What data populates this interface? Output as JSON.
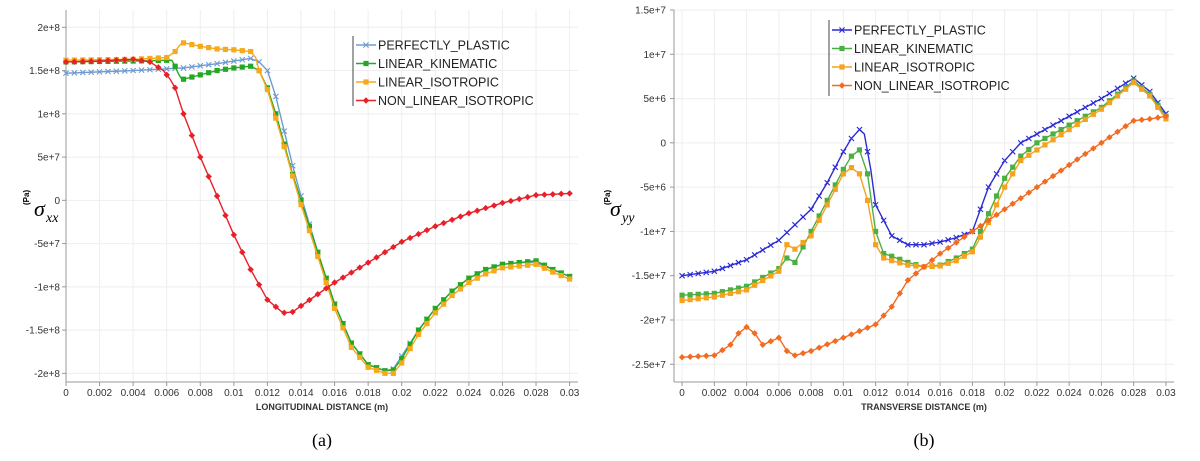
{
  "chart_data": [
    {
      "type": "line",
      "caption": "(a)",
      "ylabel_symbol": "σ",
      "ylabel_subscript": "xx",
      "ylabel_unit": "(Pa)",
      "xlabel": "LONGITUDINAL DISTANCE (m)",
      "xlim": [
        0,
        0.0305
      ],
      "ylim": [
        -210000000,
        220000000
      ],
      "xticks": [
        0,
        0.002,
        0.004,
        0.006,
        0.008,
        0.01,
        0.012,
        0.014,
        0.016,
        0.018,
        0.02,
        0.022,
        0.024,
        0.026,
        0.028,
        0.03
      ],
      "xtick_labels": [
        "0",
        "0.002",
        "0.004",
        "0.006",
        "0.008",
        "0.01",
        "0.012",
        "0.014",
        "0.016",
        "0.018",
        "0.02",
        "0.022",
        "0.024",
        "0.026",
        "0.028",
        "0.03"
      ],
      "yticks": [
        -200000000,
        -150000000,
        -100000000,
        -50000000,
        0,
        50000000,
        100000000,
        150000000,
        200000000
      ],
      "ytick_labels": [
        "-2e+8",
        "-1.5e+8",
        "-1e+8",
        "-5e+7",
        "0",
        "5e+7",
        "1e+8",
        "1.5e+8",
        "2e+8"
      ],
      "grid": true,
      "legend_position": "top-right",
      "series": [
        {
          "name": "PERFECTLY_PLASTIC",
          "color": "#6e9bd2",
          "marker": "x",
          "x": [
            0,
            0.004,
            0.007,
            0.009,
            0.011,
            0.0115,
            0.012,
            0.0125,
            0.013,
            0.0135,
            0.014,
            0.015,
            0.016,
            0.017,
            0.018,
            0.019,
            0.0195,
            0.02,
            0.021,
            0.022,
            0.023,
            0.024,
            0.025,
            0.026,
            0.027,
            0.028,
            0.029,
            0.03
          ],
          "y": [
            147000000,
            150000000,
            153000000,
            158000000,
            164000000,
            160000000,
            150000000,
            120000000,
            80000000,
            40000000,
            5000000,
            -60000000,
            -120000000,
            -165000000,
            -190000000,
            -197000000,
            -195000000,
            -180000000,
            -150000000,
            -125000000,
            -105000000,
            -90000000,
            -80000000,
            -74000000,
            -72000000,
            -72000000,
            -80000000,
            -88000000
          ]
        },
        {
          "name": "LINEAR_KINEMATIC",
          "color": "#22a822",
          "marker": "square",
          "x": [
            0,
            0.004,
            0.0063,
            0.0065,
            0.0067,
            0.0069,
            0.007,
            0.008,
            0.009,
            0.01,
            0.011,
            0.0115,
            0.012,
            0.0125,
            0.013,
            0.0135,
            0.014,
            0.015,
            0.016,
            0.017,
            0.018,
            0.019,
            0.0195,
            0.02,
            0.021,
            0.022,
            0.023,
            0.024,
            0.025,
            0.026,
            0.027,
            0.028,
            0.029,
            0.03
          ],
          "y": [
            160000000,
            161000000,
            162000000,
            155000000,
            146000000,
            140000000,
            140000000,
            145000000,
            150000000,
            153000000,
            155000000,
            150000000,
            130000000,
            100000000,
            65000000,
            30000000,
            0,
            -60000000,
            -120000000,
            -165000000,
            -190000000,
            -197000000,
            -196000000,
            -183000000,
            -150000000,
            -125000000,
            -105000000,
            -90000000,
            -80000000,
            -74000000,
            -72000000,
            -70000000,
            -80000000,
            -88000000
          ]
        },
        {
          "name": "LINEAR_ISOTROPIC",
          "color": "#f6a91a",
          "marker": "square",
          "x": [
            0,
            0.004,
            0.006,
            0.0065,
            0.0068,
            0.007,
            0.008,
            0.009,
            0.01,
            0.011,
            0.0113,
            0.0115,
            0.012,
            0.0125,
            0.013,
            0.0135,
            0.014,
            0.015,
            0.016,
            0.017,
            0.018,
            0.019,
            0.0195,
            0.02,
            0.021,
            0.022,
            0.023,
            0.024,
            0.025,
            0.026,
            0.027,
            0.028,
            0.029,
            0.03
          ],
          "y": [
            162000000,
            163000000,
            165000000,
            172000000,
            180000000,
            182000000,
            178000000,
            175000000,
            174000000,
            172000000,
            165000000,
            150000000,
            128000000,
            95000000,
            62000000,
            28000000,
            -5000000,
            -65000000,
            -125000000,
            -170000000,
            -193000000,
            -200000000,
            -200000000,
            -188000000,
            -155000000,
            -130000000,
            -110000000,
            -95000000,
            -85000000,
            -78000000,
            -76000000,
            -74000000,
            -83000000,
            -91000000
          ]
        },
        {
          "name": "NON_LINEAR_ISOTROPIC",
          "color": "#e8202a",
          "marker": "diamond",
          "x": [
            0,
            0.002,
            0.004,
            0.005,
            0.0058,
            0.0062,
            0.0065,
            0.007,
            0.008,
            0.009,
            0.01,
            0.011,
            0.012,
            0.0128,
            0.013,
            0.0135,
            0.014,
            0.016,
            0.018,
            0.02,
            0.022,
            0.024,
            0.026,
            0.028,
            0.029,
            0.03
          ],
          "y": [
            160000000,
            161000000,
            163000000,
            160000000,
            150000000,
            140000000,
            130000000,
            100000000,
            50000000,
            5000000,
            -40000000,
            -80000000,
            -115000000,
            -128000000,
            -130000000,
            -129000000,
            -122000000,
            -95000000,
            -72000000,
            -48000000,
            -30000000,
            -15000000,
            -3000000,
            6000000,
            7000000,
            8000000
          ]
        }
      ]
    },
    {
      "type": "line",
      "caption": "(b)",
      "ylabel_symbol": "σ",
      "ylabel_subscript": "yy",
      "ylabel_unit": "(Pa)",
      "xlabel": "TRANSVERSE DISTANCE (m)",
      "xlim": [
        -0.0005,
        0.0305
      ],
      "ylim": [
        -27000000,
        15000000
      ],
      "xticks": [
        0,
        0.002,
        0.004,
        0.006,
        0.008,
        0.01,
        0.012,
        0.014,
        0.016,
        0.018,
        0.02,
        0.022,
        0.024,
        0.026,
        0.028,
        0.03
      ],
      "xtick_labels": [
        "0",
        "0.002",
        "0.004",
        "0.006",
        "0.008",
        "0.01",
        "0.012",
        "0.014",
        "0.016",
        "0.018",
        "0.02",
        "0.022",
        "0.024",
        "0.026",
        "0.028",
        "0.03"
      ],
      "yticks": [
        -25000000,
        -20000000,
        -15000000,
        -10000000,
        -5000000,
        0,
        5000000,
        10000000,
        15000000
      ],
      "ytick_labels": [
        "-2.5e+7",
        "-2e+7",
        "-1.5e+7",
        "-1e+7",
        "-5e+6",
        "0",
        "5e+6",
        "1e+7",
        "1.5e+7"
      ],
      "grid": true,
      "legend_position": "top-left",
      "series": [
        {
          "name": "PERFECTLY_PLASTIC",
          "color": "#2a2ad4",
          "marker": "x",
          "x": [
            0,
            0.002,
            0.004,
            0.006,
            0.008,
            0.009,
            0.01,
            0.0105,
            0.011,
            0.0113,
            0.0117,
            0.012,
            0.013,
            0.014,
            0.015,
            0.016,
            0.017,
            0.018,
            0.019,
            0.02,
            0.021,
            0.022,
            0.024,
            0.026,
            0.028,
            0.029,
            0.03
          ],
          "y": [
            -15000000,
            -14500000,
            -13200000,
            -11000000,
            -7500000,
            -4500000,
            -1000000,
            500000,
            1500000,
            1000000,
            -3000000,
            -7000000,
            -10500000,
            -11500000,
            -11500000,
            -11200000,
            -10700000,
            -10000000,
            -5000000,
            -2000000,
            0,
            1000000,
            3000000,
            5000000,
            7300000,
            5800000,
            3300000
          ]
        },
        {
          "name": "LINEAR_KINEMATIC",
          "color": "#4caf42",
          "marker": "square",
          "x": [
            0,
            0.002,
            0.004,
            0.006,
            0.0065,
            0.007,
            0.008,
            0.009,
            0.01,
            0.0105,
            0.011,
            0.0115,
            0.012,
            0.0125,
            0.013,
            0.014,
            0.015,
            0.016,
            0.017,
            0.018,
            0.019,
            0.02,
            0.021,
            0.022,
            0.024,
            0.026,
            0.028,
            0.029,
            0.03
          ],
          "y": [
            -17200000,
            -17000000,
            -16200000,
            -14200000,
            -13000000,
            -13500000,
            -10000000,
            -6500000,
            -3000000,
            -1500000,
            -800000,
            -3500000,
            -10000000,
            -12500000,
            -12800000,
            -13500000,
            -14000000,
            -13800000,
            -13000000,
            -12000000,
            -8000000,
            -4000000,
            -1500000,
            0,
            2000000,
            4000000,
            7000000,
            5500000,
            3000000
          ]
        },
        {
          "name": "LINEAR_ISOTROPIC",
          "color": "#f5a21f",
          "marker": "square",
          "x": [
            0,
            0.002,
            0.004,
            0.006,
            0.0065,
            0.007,
            0.008,
            0.009,
            0.01,
            0.0105,
            0.011,
            0.0115,
            0.012,
            0.0125,
            0.013,
            0.014,
            0.015,
            0.016,
            0.017,
            0.018,
            0.019,
            0.02,
            0.021,
            0.022,
            0.024,
            0.026,
            0.028,
            0.029,
            0.03
          ],
          "y": [
            -17800000,
            -17400000,
            -16600000,
            -14500000,
            -11500000,
            -12000000,
            -10500000,
            -7000000,
            -3500000,
            -2800000,
            -3500000,
            -6500000,
            -11500000,
            -13000000,
            -13300000,
            -13800000,
            -14000000,
            -13900000,
            -13300000,
            -12300000,
            -9000000,
            -5000000,
            -2000000,
            -800000,
            1500000,
            3800000,
            6800000,
            5300000,
            2700000
          ]
        },
        {
          "name": "NON_LINEAR_ISOTROPIC",
          "color": "#f26b22",
          "marker": "diamond",
          "x": [
            0,
            0.002,
            0.003,
            0.0035,
            0.004,
            0.0045,
            0.005,
            0.006,
            0.0065,
            0.007,
            0.008,
            0.01,
            0.012,
            0.013,
            0.014,
            0.015,
            0.016,
            0.018,
            0.02,
            0.022,
            0.024,
            0.026,
            0.028,
            0.029,
            0.03
          ],
          "y": [
            -24200000,
            -24000000,
            -22800000,
            -21500000,
            -20800000,
            -21500000,
            -22800000,
            -22000000,
            -23500000,
            -24000000,
            -23500000,
            -22000000,
            -20500000,
            -18500000,
            -15500000,
            -14000000,
            -12500000,
            -10000000,
            -7500000,
            -5000000,
            -2500000,
            0,
            2500000,
            2700000,
            3000000
          ]
        }
      ]
    }
  ]
}
